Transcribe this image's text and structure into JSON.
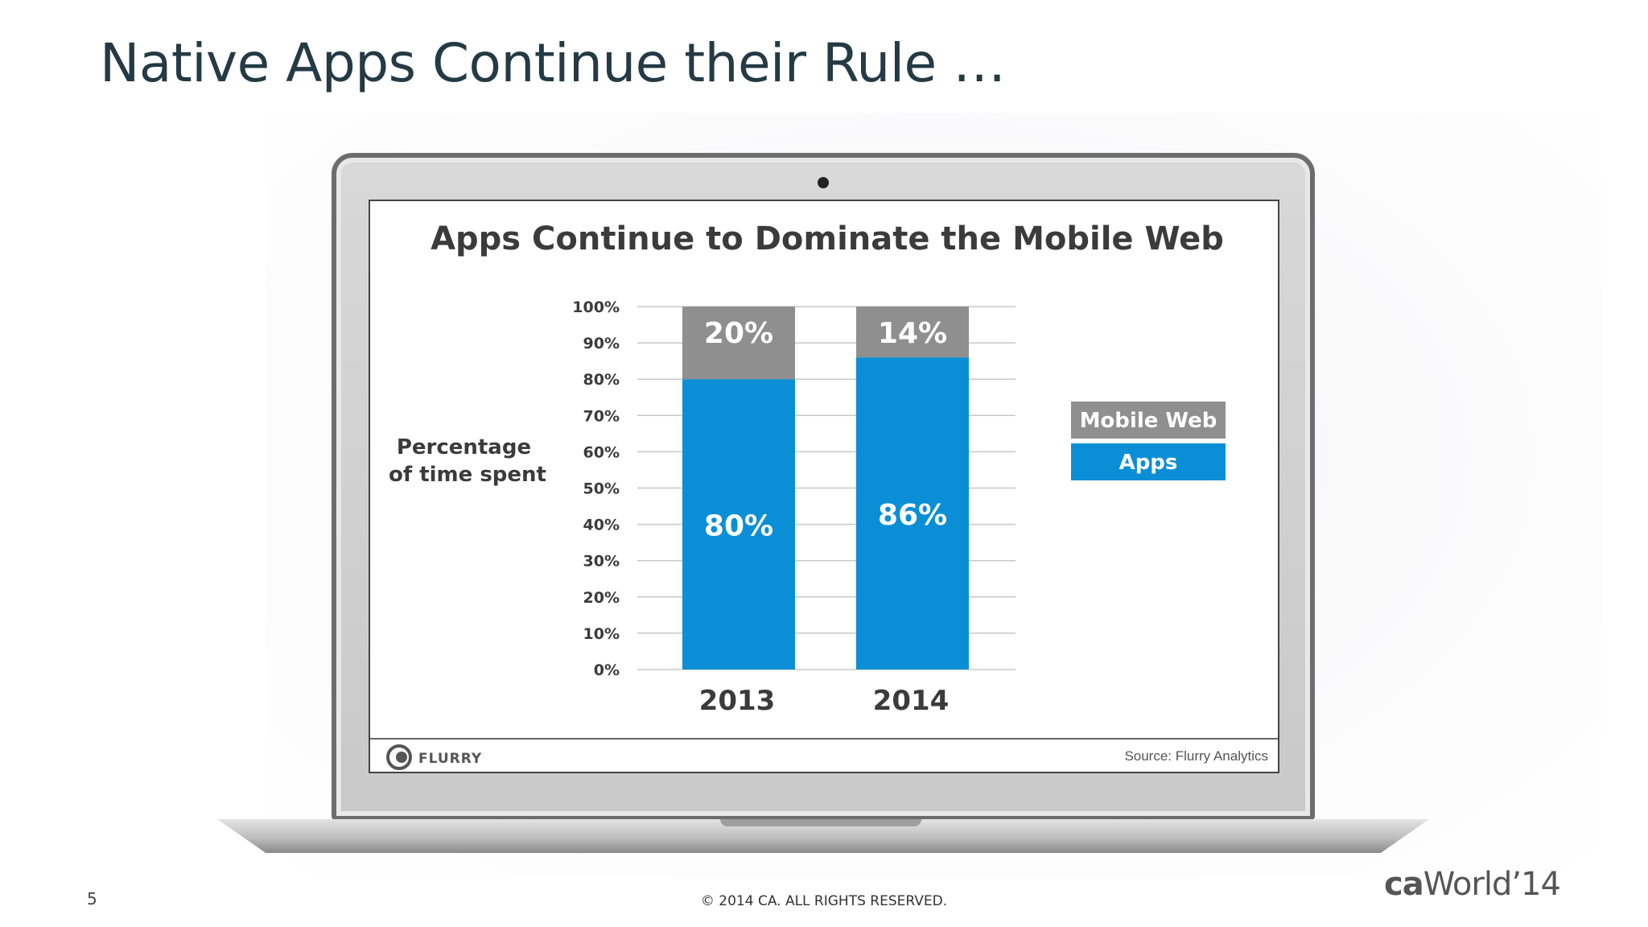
{
  "slide": {
    "title": "Native Apps Continue their Rule …",
    "page_number": "5",
    "copyright": "© 2014 CA. ALL RIGHTS RESERVED.",
    "brand_ca": "ca",
    "brand_world": "World’14"
  },
  "chart_data": {
    "type": "bar",
    "stacked": true,
    "title": "Apps Continue to Dominate the Mobile Web",
    "ylabel": "Percentage of time spent",
    "ylabel_lines": [
      "Percentage",
      "of time spent"
    ],
    "xlabel": "",
    "categories": [
      "2013",
      "2014"
    ],
    "ylim": [
      0,
      100
    ],
    "yticks": [
      "0%",
      "10%",
      "20%",
      "30%",
      "40%",
      "50%",
      "60%",
      "70%",
      "80%",
      "90%",
      "100%"
    ],
    "grid": true,
    "legend_placement": "right",
    "series": [
      {
        "name": "Apps",
        "values": [
          80,
          86
        ],
        "labels": [
          "80%",
          "86%"
        ],
        "color": "#0a8fd6"
      },
      {
        "name": "Mobile Web",
        "values": [
          20,
          14
        ],
        "labels": [
          "20%",
          "14%"
        ],
        "color": "#8f8f8f"
      }
    ],
    "legend_order": [
      "Mobile Web",
      "Apps"
    ],
    "footer_logo": "FLURRY",
    "source": "Source: Flurry Analytics"
  }
}
